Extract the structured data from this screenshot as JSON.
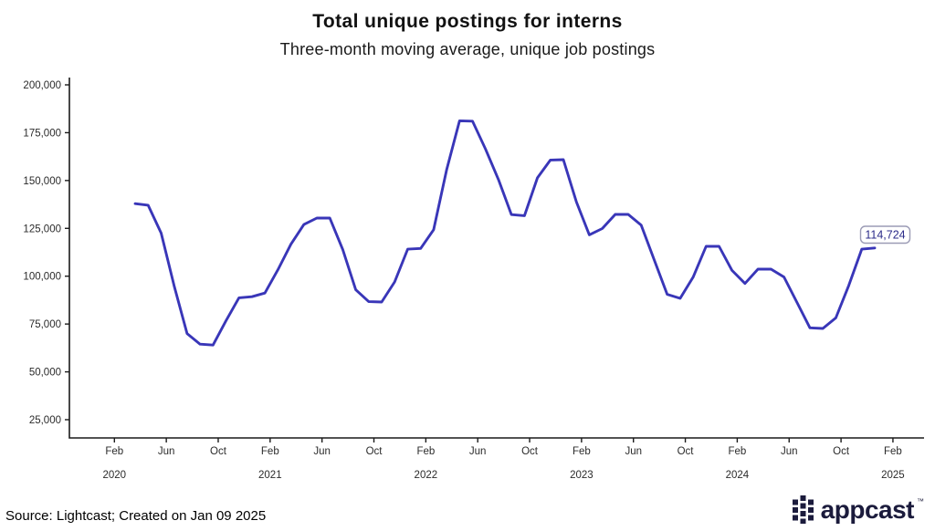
{
  "header": {
    "title": "Total unique postings for interns",
    "subtitle": "Three-month moving average, unique job postings"
  },
  "footer": {
    "source": "Source: Lightcast; Created on Jan 09 2025",
    "logo_text": "appcast",
    "logo_tm": "™"
  },
  "annotation": {
    "label": "114,724"
  },
  "colors": {
    "line": "#3936b8",
    "annotation_text": "#2c2c8a",
    "annotation_border": "#9b9bb5",
    "axis": "#1a1a1a",
    "tick_label": "#2b2b2b",
    "logo_navy": "#1b1b3c"
  },
  "chart_data": {
    "type": "line",
    "title": "Total unique postings for interns",
    "subtitle": "Three-month moving average, unique job postings",
    "series_name": "Unique job postings, 3-month moving average",
    "x_frequency": "monthly",
    "x_start": "2020-03",
    "x_end": "2024-12",
    "values": [
      137900,
      137100,
      122500,
      95000,
      70000,
      64500,
      64000,
      76700,
      88700,
      89300,
      91200,
      103400,
      116700,
      127000,
      130400,
      130400,
      113900,
      92900,
      86700,
      86500,
      97000,
      114100,
      114500,
      124300,
      155500,
      181200,
      181000,
      166500,
      150500,
      132200,
      131600,
      151400,
      160700,
      160900,
      138900,
      121600,
      124900,
      132300,
      132300,
      126700,
      108500,
      90500,
      88400,
      99500,
      115600,
      115600,
      103000,
      96200,
      103700,
      103700,
      99600,
      86300,
      73000,
      72700,
      78200,
      95200,
      114100,
      114724
    ],
    "last_value_label": "114,724",
    "ylim": [
      25000,
      200000
    ],
    "y_ticks": [
      200000,
      175000,
      150000,
      125000,
      100000,
      75000,
      50000,
      25000
    ],
    "x_ticks": [
      {
        "label": "Feb",
        "month": 0
      },
      {
        "label": "Jun",
        "month": 4
      },
      {
        "label": "Oct",
        "month": 8
      },
      {
        "label": "Feb",
        "month": 12
      },
      {
        "label": "Jun",
        "month": 16
      },
      {
        "label": "Oct",
        "month": 20
      },
      {
        "label": "Feb",
        "month": 24
      },
      {
        "label": "Jun",
        "month": 28
      },
      {
        "label": "Oct",
        "month": 32
      },
      {
        "label": "Feb",
        "month": 36
      },
      {
        "label": "Jun",
        "month": 40
      },
      {
        "label": "Oct",
        "month": 44
      },
      {
        "label": "Feb",
        "month": 48
      },
      {
        "label": "Jun",
        "month": 52
      },
      {
        "label": "Oct",
        "month": 56
      },
      {
        "label": "Feb",
        "month": 60
      }
    ],
    "year_labels": [
      {
        "label": "2020",
        "month": 0
      },
      {
        "label": "2021",
        "month": 12
      },
      {
        "label": "2022",
        "month": 24
      },
      {
        "label": "2023",
        "month": 36
      },
      {
        "label": "2024",
        "month": 48
      },
      {
        "label": "2025",
        "month": 60
      }
    ],
    "grid": false,
    "legend": false
  }
}
